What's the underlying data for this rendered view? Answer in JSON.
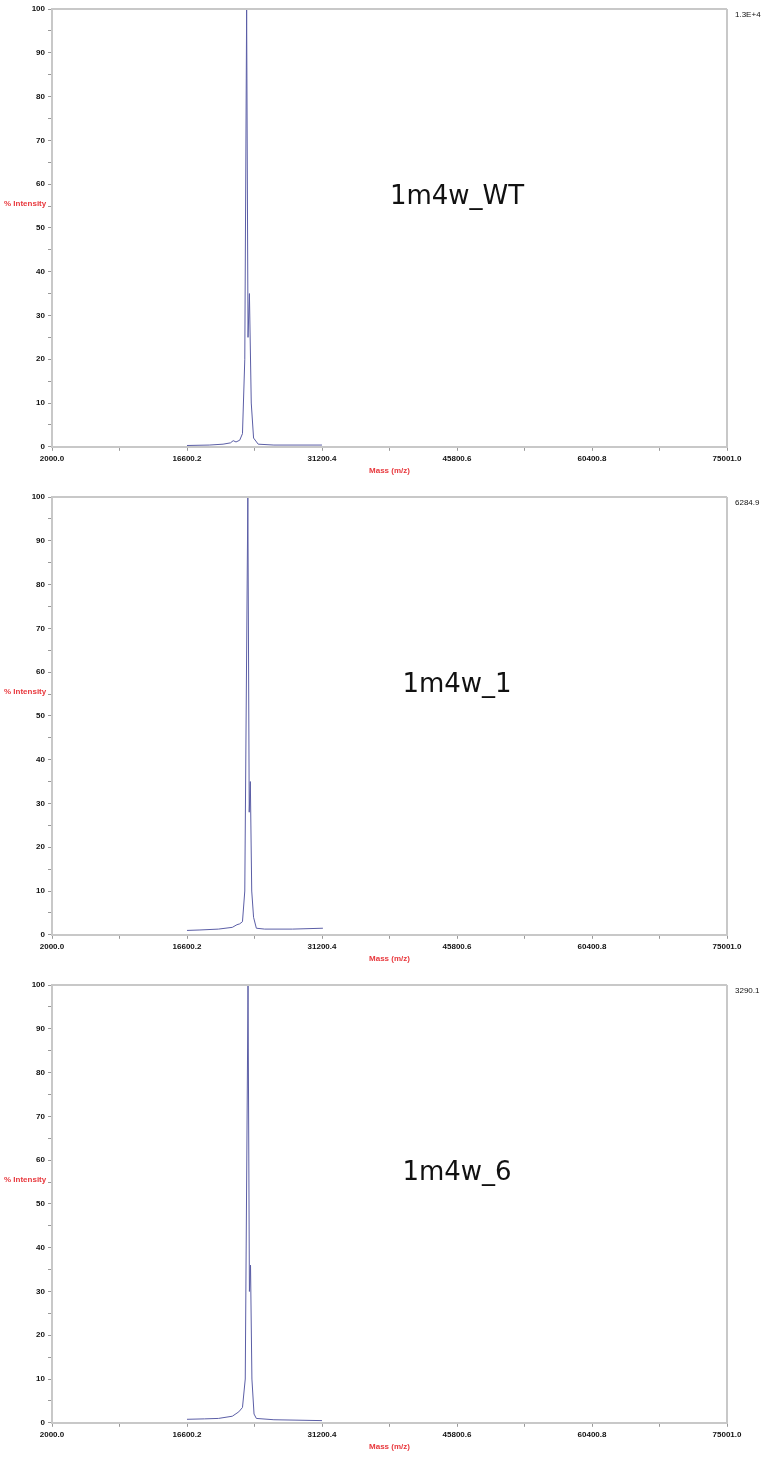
{
  "chart_data": [
    {
      "type": "line",
      "title": "1m4w_WT",
      "xlabel": "Mass (m/z)",
      "ylabel": "% Intensity",
      "annotations": [
        "1.3E+4"
      ],
      "marker": "none",
      "grid": false,
      "legend": false,
      "xlim": [
        2000,
        75001
      ],
      "ylim": [
        0,
        100
      ],
      "xticks": [
        {
          "value": 2000,
          "label": "2000.0"
        },
        {
          "value": 9300.1,
          "label": null
        },
        {
          "value": 16600.2,
          "label": "16600.2"
        },
        {
          "value": 23900.3,
          "label": null
        },
        {
          "value": 31200.4,
          "label": "31200.4"
        },
        {
          "value": 38500.5,
          "label": null
        },
        {
          "value": 45800.6,
          "label": "45800.6"
        },
        {
          "value": 53100.7,
          "label": null
        },
        {
          "value": 60400.8,
          "label": "60400.8"
        },
        {
          "value": 67700.9,
          "label": null
        },
        {
          "value": 75001,
          "label": "75001.0"
        }
      ],
      "yticks": [
        0,
        {
          "value": 5,
          "label": null
        },
        10,
        {
          "value": 15,
          "label": null
        },
        20,
        {
          "value": 25,
          "label": null
        },
        30,
        {
          "value": 35,
          "label": null
        },
        40,
        {
          "value": 45,
          "label": null
        },
        50,
        {
          "value": 55,
          "label": null
        },
        60,
        {
          "value": 65,
          "label": null
        },
        70,
        {
          "value": 75,
          "label": null
        },
        80,
        {
          "value": 85,
          "label": null
        },
        90,
        {
          "value": 95,
          "label": null
        },
        100
      ],
      "series": [
        {
          "color": "#5b5ea6",
          "x": [
            16600,
            19000,
            20500,
            21300,
            21600,
            21900,
            22300,
            22600,
            22850,
            23050,
            23200,
            23350,
            23550,
            23800,
            24300,
            26000,
            31200
          ],
          "values": [
            0.3,
            0.4,
            0.6,
            0.9,
            1.4,
            1.1,
            1.5,
            3,
            20,
            100,
            25,
            35,
            10,
            2,
            0.6,
            0.4,
            0.4
          ]
        }
      ]
    },
    {
      "type": "line",
      "title": "1m4w_1",
      "xlabel": "Mass (m/z)",
      "ylabel": "% Intensity",
      "annotations": [
        "6284.9"
      ],
      "marker": "none",
      "grid": false,
      "legend": false,
      "xlim": [
        2000,
        75001
      ],
      "ylim": [
        0,
        100
      ],
      "xticks": [
        {
          "value": 2000,
          "label": "2000.0"
        },
        {
          "value": 9300.1,
          "label": null
        },
        {
          "value": 16600.2,
          "label": "16600.2"
        },
        {
          "value": 23900.3,
          "label": null
        },
        {
          "value": 31200.4,
          "label": "31200.4"
        },
        {
          "value": 38500.5,
          "label": null
        },
        {
          "value": 45800.6,
          "label": "45800.6"
        },
        {
          "value": 53100.7,
          "label": null
        },
        {
          "value": 60400.8,
          "label": "60400.8"
        },
        {
          "value": 67700.9,
          "label": null
        },
        {
          "value": 75001,
          "label": "75001.0"
        }
      ],
      "yticks": [
        0,
        {
          "value": 5,
          "label": null
        },
        10,
        {
          "value": 15,
          "label": null
        },
        20,
        {
          "value": 25,
          "label": null
        },
        30,
        {
          "value": 35,
          "label": null
        },
        40,
        {
          "value": 45,
          "label": null
        },
        50,
        {
          "value": 55,
          "label": null
        },
        60,
        {
          "value": 65,
          "label": null
        },
        70,
        {
          "value": 75,
          "label": null
        },
        80,
        {
          "value": 85,
          "label": null
        },
        90,
        {
          "value": 95,
          "label": null
        },
        100
      ],
      "series": [
        {
          "color": "#5b5ea6",
          "x": [
            16600,
            18000,
            20000,
            21500,
            22000,
            22300,
            22600,
            22850,
            23180,
            23330,
            23450,
            23600,
            23800,
            24100,
            25000,
            28000,
            31300
          ],
          "values": [
            1.0,
            1.1,
            1.3,
            1.7,
            2.3,
            2.5,
            3,
            10,
            100,
            28,
            35,
            10,
            4,
            1.5,
            1.3,
            1.3,
            1.5
          ]
        }
      ]
    },
    {
      "type": "line",
      "title": "1m4w_6",
      "xlabel": "Mass (m/z)",
      "ylabel": "% Intensity",
      "annotations": [
        "3290.1"
      ],
      "marker": "none",
      "grid": false,
      "legend": false,
      "xlim": [
        2000,
        75001
      ],
      "ylim": [
        0,
        100
      ],
      "xticks": [
        {
          "value": 2000,
          "label": "2000.0"
        },
        {
          "value": 9300.1,
          "label": null
        },
        {
          "value": 16600.2,
          "label": "16600.2"
        },
        {
          "value": 23900.3,
          "label": null
        },
        {
          "value": 31200.4,
          "label": "31200.4"
        },
        {
          "value": 38500.5,
          "label": null
        },
        {
          "value": 45800.6,
          "label": "45800.6"
        },
        {
          "value": 53100.7,
          "label": null
        },
        {
          "value": 60400.8,
          "label": "60400.8"
        },
        {
          "value": 67700.9,
          "label": null
        },
        {
          "value": 75001,
          "label": "75001.0"
        }
      ],
      "yticks": [
        0,
        {
          "value": 5,
          "label": null
        },
        10,
        {
          "value": 15,
          "label": null
        },
        20,
        {
          "value": 25,
          "label": null
        },
        30,
        {
          "value": 35,
          "label": null
        },
        40,
        {
          "value": 45,
          "label": null
        },
        50,
        {
          "value": 55,
          "label": null
        },
        60,
        {
          "value": 65,
          "label": null
        },
        70,
        {
          "value": 75,
          "label": null
        },
        80,
        {
          "value": 85,
          "label": null
        },
        90,
        {
          "value": 95,
          "label": null
        },
        100
      ],
      "series": [
        {
          "color": "#5b5ea6",
          "x": [
            16600,
            18500,
            20000,
            21500,
            22200,
            22600,
            22900,
            23200,
            23350,
            23470,
            23620,
            23850,
            24100,
            26000,
            31200
          ],
          "values": [
            0.8,
            0.9,
            1.0,
            1.5,
            2.5,
            3.5,
            10,
            100,
            30,
            36,
            10,
            2,
            1,
            0.7,
            0.5
          ]
        }
      ]
    }
  ]
}
